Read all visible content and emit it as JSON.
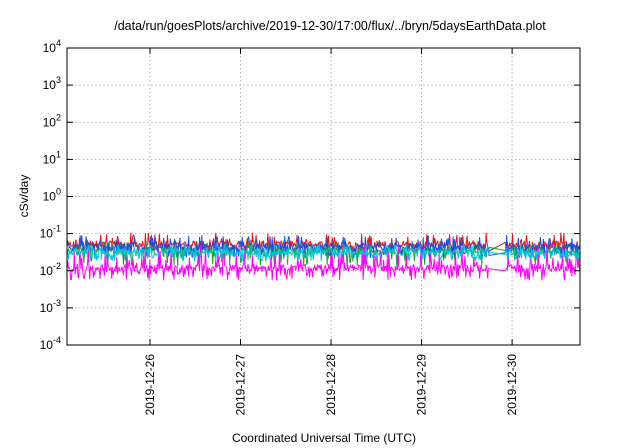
{
  "chart_data": {
    "type": "line",
    "title": "/data/run/goesPlots/archive/2019-12-30/17:00/flux/../bryn/5daysEarthData.plot",
    "xlabel": "Coordinated Universal Time (UTC)",
    "ylabel": "cSv/day",
    "yscale": "log",
    "ylim": [
      0.0001,
      10000
    ],
    "y_ticks": [
      {
        "value": 0.0001,
        "base": "10",
        "exp": "-4"
      },
      {
        "value": 0.001,
        "base": "10",
        "exp": "-3"
      },
      {
        "value": 0.01,
        "base": "10",
        "exp": "-2"
      },
      {
        "value": 0.1,
        "base": "10",
        "exp": "-1"
      },
      {
        "value": 1,
        "base": "10",
        "exp": "0"
      },
      {
        "value": 10,
        "base": "10",
        "exp": "1"
      },
      {
        "value": 100,
        "base": "10",
        "exp": "2"
      },
      {
        "value": 1000,
        "base": "10",
        "exp": "3"
      },
      {
        "value": 10000,
        "base": "10",
        "exp": "4"
      }
    ],
    "xlim": [
      "2019-12-25 02:00",
      "2019-12-30 18:00"
    ],
    "x_ticks": [
      "2019-12-26",
      "2019-12-27",
      "2019-12-28",
      "2019-12-29",
      "2019-12-30"
    ],
    "x_tick_values": [
      "2019-12-26 00:00",
      "2019-12-27 00:00",
      "2019-12-28 00:00",
      "2019-12-29 00:00",
      "2019-12-30 00:00"
    ],
    "grid": true,
    "data_gap": [
      "2019-12-29 18:00",
      "2019-12-29 22:00"
    ],
    "series": [
      {
        "color": "#e8141c",
        "median": 0.052,
        "low": 0.032,
        "high": 0.105
      },
      {
        "color": "#1f9e33",
        "median": 0.036,
        "low": 0.013,
        "high": 0.062
      },
      {
        "color": "#1a4fe0",
        "median": 0.044,
        "low": 0.022,
        "high": 0.09
      },
      {
        "color": "#ff00ff",
        "median": 0.012,
        "low": 0.0056,
        "high": 0.05
      },
      {
        "color": "#00c8d8",
        "median": 0.032,
        "low": 0.018,
        "high": 0.05
      }
    ]
  }
}
